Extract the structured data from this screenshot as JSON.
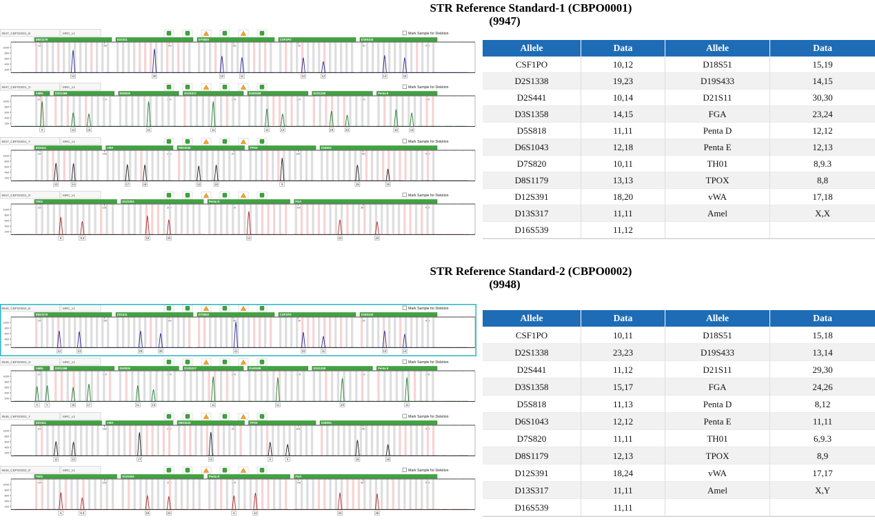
{
  "panel_ui": {
    "deletion_label": "Mark Sample for Deletion",
    "status_icons": [
      "ok",
      "ok",
      "warn",
      "ok",
      "warn",
      "ok"
    ],
    "y_ticks": [
      "1000",
      "800",
      "600",
      "400",
      "200"
    ],
    "x_ticks": [
      "100",
      "150",
      "200",
      "250",
      "300",
      "350",
      "400"
    ]
  },
  "colors": {
    "table_header_bg": "#1e6cb5",
    "table_header_text": "#ffffff",
    "row_alt_bg": "#f1f1f1",
    "row_bg": "#ffffff",
    "locus_bar": "#3fa53f",
    "locus_bar_border": "#2d7f2d",
    "bin_gray": "#dcdcdc",
    "bin_pink": "#f6d2d2",
    "highlight_border": "#35b8c8",
    "ok_icon": "#3aa63a",
    "warn_icon": "#f2a32a",
    "trace_blue": "#26269b",
    "trace_green": "#177d2c",
    "trace_black": "#1a1a1a",
    "trace_red": "#b32424"
  },
  "sections": [
    {
      "title_line1": "STR Reference Standard-1 (CBPO0001)",
      "title_line2": "(9947)",
      "panels": [
        {
          "dye": "blue",
          "sample_label": "9947_CBPO0001_B",
          "marker_label": "MRC_v1",
          "highlight": false,
          "loci": [
            {
              "name": "D8S1179",
              "alleles": "13,13"
            },
            {
              "name": "D21S11",
              "alleles": "30,30"
            },
            {
              "name": "D7S820",
              "alleles": "10,11"
            },
            {
              "name": "CSF1PO",
              "alleles": "10,12"
            },
            {
              "name": "D19S433",
              "alleles": "14,15"
            }
          ]
        },
        {
          "dye": "green",
          "sample_label": "9947_CBPO0001_G",
          "marker_label": "MRC_v1",
          "highlight": false,
          "loci": [
            {
              "name": "AMEL",
              "alleles": "X,X",
              "narrow": true
            },
            {
              "name": "D3S1358",
              "alleles": "14,15"
            },
            {
              "name": "D5S818",
              "alleles": "11,11"
            },
            {
              "name": "D13S317",
              "alleles": "11,11"
            },
            {
              "name": "D16S539",
              "alleles": "11,12"
            },
            {
              "name": "D2S1338",
              "alleles": "19,23"
            },
            {
              "name": "Penta E",
              "alleles": "12,13"
            }
          ]
        },
        {
          "dye": "black",
          "sample_label": "9947_CBPO0001_Y",
          "marker_label": "MRC_v1",
          "highlight": false,
          "loci": [
            {
              "name": "D2S441",
              "alleles": "10,14"
            },
            {
              "name": "vWA",
              "alleles": "17,18"
            },
            {
              "name": "D6S1043",
              "alleles": "12,18"
            },
            {
              "name": "TPOX",
              "alleles": "8,8"
            },
            {
              "name": "D18S51",
              "alleles": "15,19",
              "wide": true
            }
          ]
        },
        {
          "dye": "red",
          "sample_label": "9947_CBPO0001_R",
          "marker_label": "MRC_v1",
          "highlight": false,
          "loci": [
            {
              "name": "TH01",
              "alleles": "8,9.3"
            },
            {
              "name": "D12S391",
              "alleles": "18,20"
            },
            {
              "name": "Penta D",
              "alleles": "12,12"
            },
            {
              "name": "FGA",
              "alleles": "23,24",
              "wide": true
            }
          ]
        }
      ],
      "table": {
        "headers": [
          "Allele",
          "Data",
          "Allele",
          "Data"
        ],
        "rows": [
          [
            "CSF1PO",
            "10,12",
            "D18S51",
            "15,19"
          ],
          [
            "D2S1338",
            "19,23",
            "D19S433",
            "14,15"
          ],
          [
            "D2S441",
            "10,14",
            "D21S11",
            "30,30"
          ],
          [
            "D3S1358",
            "14,15",
            "FGA",
            "23,24"
          ],
          [
            "D5S818",
            "11,11",
            "Penta D",
            "12,12"
          ],
          [
            "D6S1043",
            "12,18",
            "Penta E",
            "12,13"
          ],
          [
            "D7S820",
            "10,11",
            "TH01",
            "8,9.3"
          ],
          [
            "D8S1179",
            "13,13",
            "TPOX",
            "8,8"
          ],
          [
            "D12S391",
            "18,20",
            "vWA",
            "17,18"
          ],
          [
            "D13S317",
            "11,11",
            "Amel",
            "X,X"
          ],
          [
            "D16S539",
            "11,12",
            "",
            ""
          ]
        ]
      }
    },
    {
      "title_line1": "STR Reference Standard-2 (CBPO0002)",
      "title_line2": "(9948)",
      "panels": [
        {
          "dye": "blue",
          "sample_label": "9948_CBPO0002_B",
          "marker_label": "MRC_v1",
          "highlight": true,
          "loci": [
            {
              "name": "D8S1179",
              "alleles": "12,13"
            },
            {
              "name": "D21S11",
              "alleles": "29,30"
            },
            {
              "name": "D7S820",
              "alleles": "11,11"
            },
            {
              "name": "CSF1PO",
              "alleles": "10,11"
            },
            {
              "name": "D19S433",
              "alleles": "13,14"
            }
          ]
        },
        {
          "dye": "green",
          "sample_label": "9948_CBPO0002_G",
          "marker_label": "MRC_v1",
          "highlight": false,
          "loci": [
            {
              "name": "AMEL",
              "alleles": "X,Y",
              "narrow": true
            },
            {
              "name": "D3S1358",
              "alleles": "15,17"
            },
            {
              "name": "D5S818",
              "alleles": "11,13"
            },
            {
              "name": "D13S317",
              "alleles": "11,11"
            },
            {
              "name": "D16S539",
              "alleles": "11,11"
            },
            {
              "name": "D2S1338",
              "alleles": "23,23"
            },
            {
              "name": "Penta E",
              "alleles": "11,11"
            }
          ]
        },
        {
          "dye": "black",
          "sample_label": "9948_CBPO0002_Y",
          "marker_label": "MRC_v1",
          "highlight": false,
          "loci": [
            {
              "name": "D2S441",
              "alleles": "11,12"
            },
            {
              "name": "vWA",
              "alleles": "17,17"
            },
            {
              "name": "D6S1043",
              "alleles": "12,12"
            },
            {
              "name": "TPOX",
              "alleles": "8,9"
            },
            {
              "name": "D18S51",
              "alleles": "15,18",
              "wide": true
            }
          ]
        },
        {
          "dye": "red",
          "sample_label": "9948_CBPO0002_R",
          "marker_label": "MRC_v1",
          "highlight": false,
          "loci": [
            {
              "name": "TH01",
              "alleles": "6,9.3"
            },
            {
              "name": "D12S391",
              "alleles": "18,24"
            },
            {
              "name": "Penta D",
              "alleles": "8,12"
            },
            {
              "name": "FGA",
              "alleles": "24,26",
              "wide": true
            }
          ]
        }
      ],
      "table": {
        "headers": [
          "Allele",
          "Data",
          "Allele",
          "Data"
        ],
        "rows": [
          [
            "CSF1PO",
            "10,11",
            "D18S51",
            "15,18"
          ],
          [
            "D2S1338",
            "23,23",
            "D19S433",
            "13,14"
          ],
          [
            "D2S441",
            "11,12",
            "D21S11",
            "29,30"
          ],
          [
            "D3S1358",
            "15,17",
            "FGA",
            "24,26"
          ],
          [
            "D5S818",
            "11,13",
            "Penta D",
            "8,12"
          ],
          [
            "D6S1043",
            "12,12",
            "Penta E",
            "11,11"
          ],
          [
            "D7S820",
            "11,11",
            "TH01",
            "6,9.3"
          ],
          [
            "D8S1179",
            "12,13",
            "TPOX",
            "8,9"
          ],
          [
            "D12S391",
            "18,24",
            "vWA",
            "17,17"
          ],
          [
            "D13S317",
            "11,11",
            "Amel",
            "X,Y"
          ],
          [
            "D16S539",
            "11,11",
            "",
            ""
          ]
        ]
      }
    }
  ]
}
